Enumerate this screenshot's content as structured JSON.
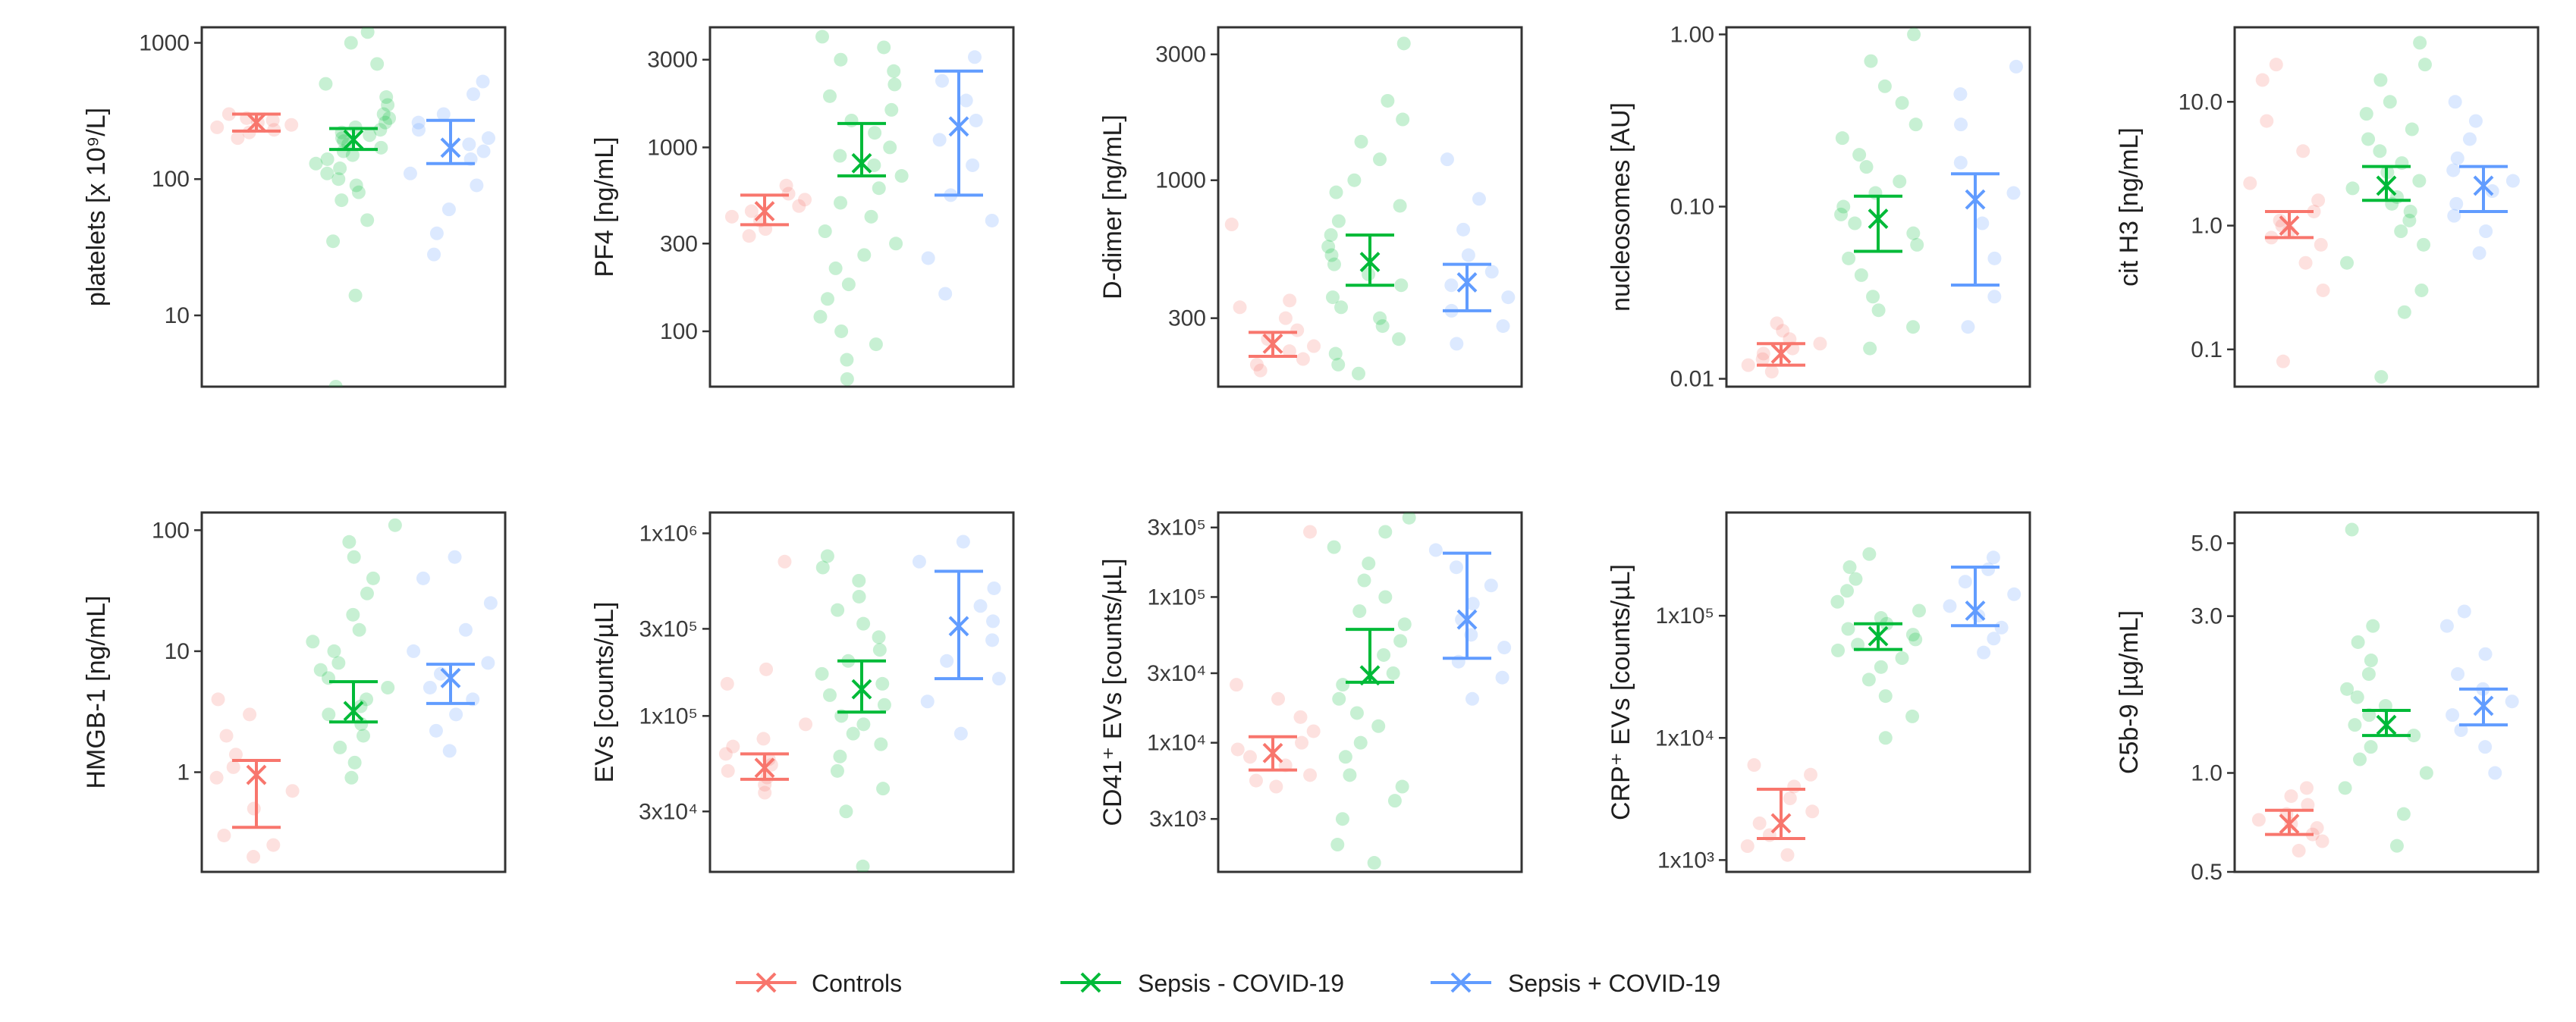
{
  "colors": {
    "controls": "#F8766D",
    "sepsis_neg": "#00BA38",
    "sepsis_pos": "#619CFF"
  },
  "legend": {
    "items": [
      {
        "key": "controls",
        "label": "Controls"
      },
      {
        "key": "sepsis_neg",
        "label": "Sepsis - COVID-19"
      },
      {
        "key": "sepsis_pos",
        "label": "Sepsis + COVID-19"
      }
    ]
  },
  "chart_data": [
    {
      "type": "scatter",
      "scale": "log",
      "ylabel": "platelets [x 10⁹/L]",
      "ylim": [
        3,
        1300
      ],
      "ticks": [
        10,
        100,
        1000
      ],
      "tick_labels": [
        "10",
        "100",
        "1000"
      ],
      "series": [
        {
          "name": "Controls",
          "median": 260,
          "lower": 225,
          "upper": 300,
          "points": [
            200,
            230,
            240,
            260,
            270,
            280,
            300,
            250,
            220
          ]
        },
        {
          "name": "Sepsis - COVID-19",
          "median": 195,
          "lower": 165,
          "upper": 235,
          "points": [
            3,
            14,
            35,
            50,
            70,
            80,
            90,
            100,
            110,
            120,
            130,
            140,
            150,
            160,
            170,
            180,
            190,
            200,
            210,
            220,
            230,
            240,
            260,
            280,
            300,
            350,
            400,
            500,
            700,
            1000,
            1200
          ]
        },
        {
          "name": "Sepsis + COVID-19",
          "median": 170,
          "lower": 130,
          "upper": 270,
          "points": [
            28,
            40,
            60,
            90,
            110,
            140,
            160,
            180,
            200,
            230,
            260,
            300,
            420,
            520
          ]
        }
      ]
    },
    {
      "type": "scatter",
      "scale": "log",
      "ylabel": "PF4 [ng/mL]",
      "ylim": [
        50,
        4500
      ],
      "ticks": [
        100,
        300,
        1000,
        3000
      ],
      "tick_labels": [
        "100",
        "300",
        "1000",
        "3000"
      ],
      "series": [
        {
          "name": "Controls",
          "median": 450,
          "lower": 380,
          "upper": 550,
          "points": [
            330,
            360,
            400,
            420,
            450,
            480,
            520,
            560,
            620
          ]
        },
        {
          "name": "Sepsis - COVID-19",
          "median": 820,
          "lower": 700,
          "upper": 1350,
          "points": [
            55,
            70,
            85,
            100,
            120,
            150,
            180,
            220,
            260,
            300,
            350,
            420,
            500,
            600,
            700,
            800,
            900,
            1000,
            1200,
            1400,
            1600,
            1900,
            2200,
            2600,
            3000,
            3500,
            4000
          ]
        },
        {
          "name": "Sepsis + COVID-19",
          "median": 1300,
          "lower": 550,
          "upper": 2600,
          "points": [
            160,
            250,
            400,
            550,
            800,
            1100,
            1400,
            1800,
            2300,
            3100
          ]
        }
      ]
    },
    {
      "type": "scatter",
      "scale": "log",
      "ylabel": "D-dimer [ng/mL]",
      "ylim": [
        165,
        3800
      ],
      "ticks": [
        300,
        1000,
        3000
      ],
      "tick_labels": [
        "300",
        "1000",
        "3000"
      ],
      "series": [
        {
          "name": "Controls",
          "median": 240,
          "lower": 215,
          "upper": 265,
          "points": [
            190,
            200,
            210,
            225,
            235,
            250,
            270,
            300,
            330,
            350,
            680
          ]
        },
        {
          "name": "Sepsis - COVID-19",
          "median": 490,
          "lower": 400,
          "upper": 620,
          "points": [
            185,
            200,
            220,
            250,
            280,
            300,
            330,
            360,
            400,
            440,
            480,
            520,
            560,
            620,
            700,
            800,
            900,
            1000,
            1200,
            1400,
            1700,
            2000,
            3300
          ]
        },
        {
          "name": "Sepsis + COVID-19",
          "median": 410,
          "lower": 320,
          "upper": 480,
          "points": [
            240,
            280,
            320,
            360,
            400,
            450,
            520,
            650,
            850,
            1200
          ]
        }
      ]
    },
    {
      "type": "scatter",
      "scale": "log",
      "ylabel": "nucleosomes [AU]",
      "ylim": [
        0.009,
        1.1
      ],
      "ticks": [
        0.01,
        0.1,
        1
      ],
      "tick_labels": [
        "0.01",
        "0.10",
        "1.00"
      ],
      "series": [
        {
          "name": "Controls",
          "median": 0.014,
          "lower": 0.012,
          "upper": 0.016,
          "points": [
            0.011,
            0.012,
            0.013,
            0.014,
            0.015,
            0.016,
            0.017,
            0.019,
            0.021
          ]
        },
        {
          "name": "Sepsis - COVID-19",
          "median": 0.085,
          "lower": 0.055,
          "upper": 0.115,
          "points": [
            0.015,
            0.02,
            0.025,
            0.03,
            0.04,
            0.05,
            0.06,
            0.07,
            0.08,
            0.09,
            0.1,
            0.12,
            0.14,
            0.17,
            0.2,
            0.25,
            0.3,
            0.4,
            0.5,
            0.7,
            1.0
          ]
        },
        {
          "name": "Sepsis + COVID-19",
          "median": 0.11,
          "lower": 0.035,
          "upper": 0.155,
          "points": [
            0.02,
            0.03,
            0.05,
            0.08,
            0.12,
            0.18,
            0.3,
            0.45,
            0.65
          ]
        }
      ]
    },
    {
      "type": "scatter",
      "scale": "log",
      "ylabel": "cit H3 [ng/mL]",
      "ylim": [
        0.05,
        40
      ],
      "ticks": [
        0.1,
        1,
        10
      ],
      "tick_labels": [
        "0.1",
        "1.0",
        "10.0"
      ],
      "series": [
        {
          "name": "Controls",
          "median": 1.0,
          "lower": 0.8,
          "upper": 1.3,
          "points": [
            0.08,
            0.3,
            0.5,
            0.7,
            0.8,
            0.9,
            1.0,
            1.1,
            1.3,
            1.6,
            2.2,
            4,
            7,
            15,
            20
          ]
        },
        {
          "name": "Sepsis - COVID-19",
          "median": 2.1,
          "lower": 1.6,
          "upper": 3.0,
          "points": [
            0.06,
            0.2,
            0.3,
            0.5,
            0.7,
            0.9,
            1.1,
            1.3,
            1.5,
            1.7,
            2.0,
            2.3,
            2.7,
            3.2,
            4,
            5,
            6,
            8,
            10,
            15,
            20,
            30
          ]
        },
        {
          "name": "Sepsis + COVID-19",
          "median": 2.1,
          "lower": 1.3,
          "upper": 3.0,
          "points": [
            0.6,
            0.9,
            1.2,
            1.5,
            1.9,
            2.3,
            2.8,
            3.5,
            5,
            7,
            10
          ]
        }
      ]
    },
    {
      "type": "scatter",
      "scale": "log",
      "ylabel": "HMGB-1 [ng/mL]",
      "ylim": [
        0.15,
        140
      ],
      "ticks": [
        1,
        10,
        100
      ],
      "tick_labels": [
        "1",
        "10",
        "100"
      ],
      "series": [
        {
          "name": "Controls",
          "median": 0.95,
          "lower": 0.35,
          "upper": 1.25,
          "points": [
            0.2,
            0.25,
            0.3,
            0.5,
            0.7,
            0.9,
            1.1,
            1.4,
            2,
            3,
            4
          ]
        },
        {
          "name": "Sepsis - COVID-19",
          "median": 3.2,
          "lower": 2.6,
          "upper": 5.6,
          "points": [
            0.9,
            1.2,
            1.6,
            2,
            2.5,
            3,
            3.5,
            4,
            5,
            6,
            7,
            8,
            10,
            12,
            15,
            20,
            30,
            40,
            60,
            80,
            110
          ]
        },
        {
          "name": "Sepsis + COVID-19",
          "median": 6.0,
          "lower": 3.7,
          "upper": 7.8,
          "points": [
            1.5,
            2.2,
            3,
            4,
            5,
            6.5,
            8,
            10,
            15,
            25,
            40,
            60
          ]
        }
      ]
    },
    {
      "type": "scatter",
      "scale": "log",
      "ylabel": "EVs [counts/µL]",
      "ylim": [
        14000,
        1300000
      ],
      "ticks": [
        30000,
        100000,
        300000,
        1000000
      ],
      "tick_labels": [
        "3x10⁴",
        "1x10⁵",
        "3x10⁵",
        "1x10⁶"
      ],
      "series": [
        {
          "name": "Controls",
          "median": 52000,
          "lower": 45000,
          "upper": 62000,
          "points": [
            38000,
            42000,
            46000,
            50000,
            54000,
            58000,
            62000,
            68000,
            75000,
            90000,
            150000,
            180000,
            700000
          ]
        },
        {
          "name": "Sepsis - COVID-19",
          "median": 140000,
          "lower": 105000,
          "upper": 200000,
          "points": [
            15000,
            30000,
            40000,
            50000,
            60000,
            70000,
            80000,
            90000,
            100000,
            115000,
            130000,
            150000,
            170000,
            200000,
            230000,
            270000,
            320000,
            380000,
            450000,
            550000,
            650000,
            750000
          ]
        },
        {
          "name": "Sepsis + COVID-19",
          "median": 310000,
          "lower": 160000,
          "upper": 620000,
          "points": [
            80000,
            120000,
            160000,
            200000,
            260000,
            330000,
            400000,
            500000,
            700000,
            900000
          ]
        }
      ]
    },
    {
      "type": "scatter",
      "scale": "log",
      "ylabel": "CD41⁺ EVs [counts/µL]",
      "ylim": [
        1300,
        380000
      ],
      "ticks": [
        3000,
        10000,
        30000,
        100000,
        300000
      ],
      "tick_labels": [
        "3x10³",
        "1x10⁴",
        "3x10⁴",
        "1x10⁵",
        "3x10⁵"
      ],
      "series": [
        {
          "name": "Controls",
          "median": 8500,
          "lower": 6500,
          "upper": 11000,
          "points": [
            5000,
            5500,
            6000,
            7000,
            8000,
            9000,
            10000,
            12000,
            15000,
            20000,
            25000,
            280000
          ]
        },
        {
          "name": "Sepsis - COVID-19",
          "median": 29000,
          "lower": 26000,
          "upper": 60000,
          "points": [
            1500,
            2000,
            3000,
            4000,
            5000,
            6000,
            8000,
            10000,
            13000,
            16000,
            20000,
            25000,
            30000,
            40000,
            50000,
            65000,
            80000,
            100000,
            130000,
            170000,
            220000,
            280000,
            350000
          ]
        },
        {
          "name": "Sepsis + COVID-19",
          "median": 70000,
          "lower": 38000,
          "upper": 200000,
          "points": [
            20000,
            28000,
            36000,
            45000,
            55000,
            70000,
            90000,
            120000,
            160000,
            210000
          ]
        }
      ]
    },
    {
      "type": "scatter",
      "scale": "log",
      "ylabel": "CRP⁺ EVs [counts/µL]",
      "ylim": [
        800,
        700000
      ],
      "ticks": [
        1000,
        10000,
        100000
      ],
      "tick_labels": [
        "1x10³",
        "1x10⁴",
        "1x10⁵"
      ],
      "series": [
        {
          "name": "Controls",
          "median": 2000,
          "lower": 1500,
          "upper": 3800,
          "points": [
            1100,
            1300,
            1600,
            2000,
            2500,
            3200,
            4000,
            5000,
            6000
          ]
        },
        {
          "name": "Sepsis - COVID-19",
          "median": 68000,
          "lower": 53000,
          "upper": 86000,
          "points": [
            10000,
            15000,
            22000,
            30000,
            38000,
            45000,
            52000,
            58000,
            64000,
            70000,
            78000,
            86000,
            96000,
            110000,
            130000,
            160000,
            200000,
            250000,
            320000
          ]
        },
        {
          "name": "Sepsis + COVID-19",
          "median": 110000,
          "lower": 83000,
          "upper": 250000,
          "points": [
            50000,
            65000,
            80000,
            100000,
            120000,
            150000,
            190000,
            240000,
            300000
          ]
        }
      ]
    },
    {
      "type": "scatter",
      "scale": "log",
      "ylabel": "C5b-9 [µg/mL]",
      "ylim": [
        0.5,
        6.2
      ],
      "ticks": [
        0.5,
        1,
        3,
        5
      ],
      "tick_labels": [
        "0.5",
        "1.0",
        "3.0",
        "5.0"
      ],
      "series": [
        {
          "name": "Controls",
          "median": 0.7,
          "lower": 0.65,
          "upper": 0.77,
          "points": [
            0.58,
            0.62,
            0.65,
            0.68,
            0.7,
            0.72,
            0.75,
            0.8,
            0.85,
            0.9
          ]
        },
        {
          "name": "Sepsis - COVID-19",
          "median": 1.4,
          "lower": 1.3,
          "upper": 1.55,
          "points": [
            0.6,
            0.75,
            0.9,
            1.0,
            1.1,
            1.2,
            1.3,
            1.4,
            1.5,
            1.6,
            1.7,
            1.8,
            2.0,
            2.2,
            2.5,
            2.8,
            5.5
          ]
        },
        {
          "name": "Sepsis + COVID-19",
          "median": 1.6,
          "lower": 1.4,
          "upper": 1.8,
          "points": [
            1.0,
            1.2,
            1.35,
            1.5,
            1.65,
            1.8,
            2.0,
            2.3,
            2.8,
            3.1
          ]
        }
      ]
    }
  ]
}
